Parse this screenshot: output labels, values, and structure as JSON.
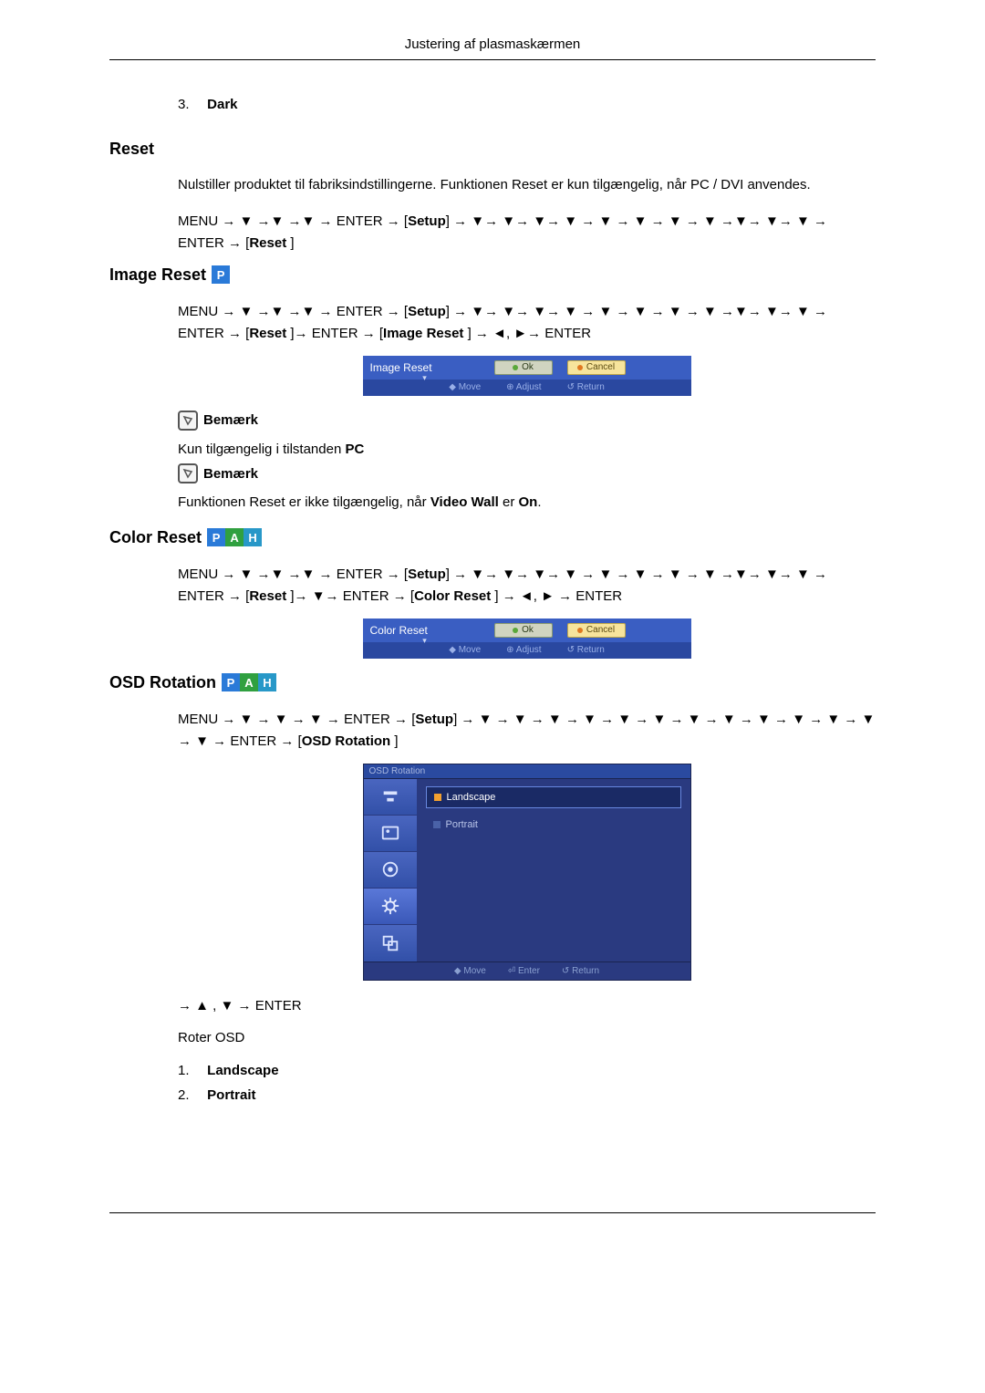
{
  "header": {
    "title": "Justering af plasmaskærmen"
  },
  "ol1": {
    "num": "3.",
    "label": "Dark"
  },
  "reset": {
    "heading": "Reset",
    "body": "Nulstiller produktet til fabriksindstillingerne. Funktionen Reset er kun tilgængelig, når PC / DVI anvendes.",
    "path_html": "MENU → ▼ →▼ →▼ → ENTER → [<b>Setup</b>] → ▼→ ▼→ ▼→ ▼ → ▼ → ▼ → ▼ → ▼ →▼→ ▼→ ▼ → ENTER → [<b>Reset</b> ]"
  },
  "image_reset": {
    "heading": "Image Reset",
    "badge": {
      "text": "P",
      "bg": "#2a7ad8"
    },
    "path_html": "MENU → ▼ →▼ →▼ → ENTER → [<b>Setup</b>] → ▼→ ▼→ ▼→ ▼ → ▼ → ▼ → ▼ → ▼ →▼→ ▼→ ▼ → ENTER → [<b>Reset</b> ]→ ENTER → [<b>Image Reset</b> ] → ◄, ►→ ENTER",
    "osd": {
      "title": "Image Reset",
      "ok": "Ok",
      "cancel": "Cancel",
      "hints": [
        "◆ Move",
        "⊕ Adjust",
        "↺ Return"
      ]
    },
    "note1_label": "Bemærk",
    "note1_body_prefix": "Kun tilgængelig i tilstanden ",
    "note1_body_bold": "PC",
    "note2_label": "Bemærk",
    "note2_body_html": "Funktionen Reset er ikke tilgængelig, når <b>Video Wall</b> er <b>On</b>."
  },
  "color_reset": {
    "heading": "Color Reset",
    "badges": [
      {
        "text": "P",
        "bg": "#2a7ad8"
      },
      {
        "text": "A",
        "bg": "#30a040"
      },
      {
        "text": "H",
        "bg": "#2898c8"
      }
    ],
    "path_html": "MENU → ▼ →▼ →▼ → ENTER → [<b>Setup</b>] → ▼→ ▼→ ▼→ ▼ → ▼ → ▼ → ▼ → ▼ →▼→ ▼→ ▼ → ENTER → [<b>Reset</b> ]→ ▼→ ENTER → [<b>Color Reset</b> ] → ◄, ► → ENTER",
    "osd": {
      "title": "Color Reset",
      "ok": "Ok",
      "cancel": "Cancel",
      "hints": [
        "◆ Move",
        "⊕ Adjust",
        "↺ Return"
      ]
    }
  },
  "osd_rotation": {
    "heading": "OSD Rotation",
    "badges": [
      {
        "text": "P",
        "bg": "#2a7ad8"
      },
      {
        "text": "A",
        "bg": "#30a040"
      },
      {
        "text": "H",
        "bg": "#2898c8"
      }
    ],
    "path_html": "MENU → ▼ → ▼ → ▼ → ENTER → [<b>Setup</b>] → ▼ → ▼ → ▼ → ▼ → ▼ → ▼ → ▼ → ▼ → ▼ → ▼ → ▼ → ▼ → ▼ → ENTER → [<b>OSD Rotation</b> ]",
    "osd": {
      "title": "OSD Rotation",
      "items": [
        {
          "label": "Landscape",
          "selected": true
        },
        {
          "label": "Portrait",
          "selected": false
        }
      ],
      "hints": [
        "◆ Move",
        "⏎ Enter",
        "↺ Return"
      ]
    },
    "after_path": "→ ▲ , ▼ → ENTER",
    "after_body": "Roter OSD",
    "list": [
      {
        "num": "1.",
        "label": "Landscape"
      },
      {
        "num": "2.",
        "label": "Portrait"
      }
    ]
  }
}
